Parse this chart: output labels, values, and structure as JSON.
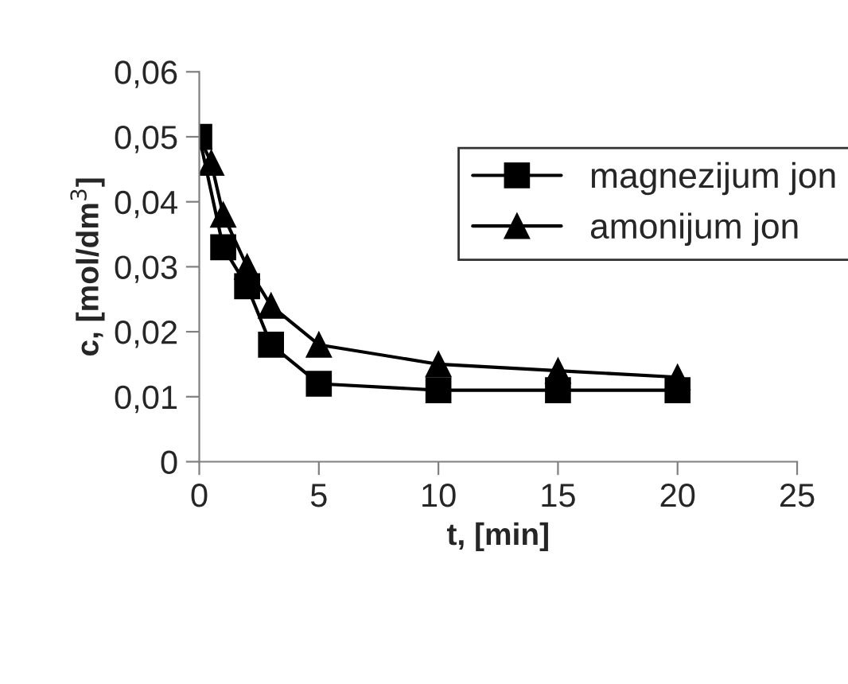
{
  "chart_data": {
    "type": "line",
    "xlabel": "t, [min]",
    "ylabel": "c, [mol/dm$^{3}$]",
    "series": [
      {
        "name": "magnezijum jon",
        "color": "#000000",
        "marker": "square",
        "x": [
          0,
          0.5,
          1,
          2,
          3,
          5,
          10,
          15,
          20
        ],
        "values": [
          0.05,
          null,
          0.033,
          0.027,
          0.018,
          0.012,
          0.011,
          0.011,
          0.011
        ]
      },
      {
        "name": "amonijum jon",
        "color": "#000000",
        "marker": "triangle",
        "x": [
          0,
          0.5,
          1,
          2,
          3,
          5,
          10,
          15,
          20
        ],
        "values": [
          0.05,
          0.046,
          0.038,
          0.03,
          0.024,
          0.018,
          0.015,
          0.014,
          0.013
        ]
      }
    ],
    "xlim": [
      0,
      25
    ],
    "xticks": [
      0,
      5,
      10,
      15,
      20,
      25
    ],
    "ylim": [
      0,
      0.06
    ],
    "yticks": [
      0,
      {
        "value": 0.01,
        "label": "0,01"
      },
      {
        "value": 0.02,
        "label": "0,02"
      },
      {
        "value": 0.03,
        "label": "0,03"
      },
      {
        "value": 0.04,
        "label": "0,04"
      },
      {
        "value": 0.05,
        "label": "0,05"
      },
      {
        "value": 0.06,
        "label": "0,06"
      }
    ],
    "legend": "top right",
    "grid": false,
    "line_style": "solid"
  }
}
